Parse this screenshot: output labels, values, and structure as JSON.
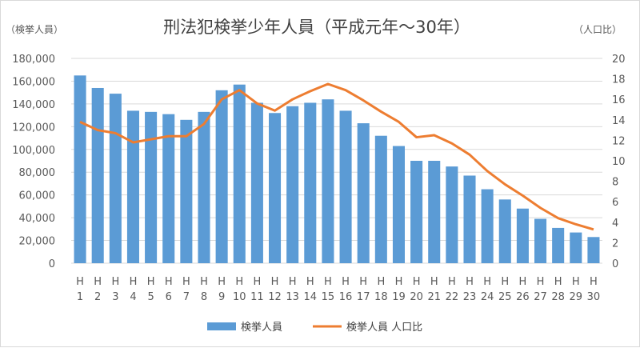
{
  "chart_data": {
    "type": "bar+line",
    "title": "刑法犯検挙少年人員（平成元年～30年）",
    "ylabel_left": "（検挙人員）",
    "ylabel_right": "（人口比）",
    "categories": [
      "1",
      "2",
      "3",
      "4",
      "5",
      "6",
      "7",
      "8",
      "9",
      "10",
      "11",
      "12",
      "13",
      "14",
      "15",
      "16",
      "17",
      "18",
      "19",
      "20",
      "21",
      "22",
      "23",
      "24",
      "25",
      "26",
      "27",
      "28",
      "29",
      "30"
    ],
    "category_prefix": "H",
    "ylim_left": [
      0,
      180000
    ],
    "ylim_right": [
      0,
      20
    ],
    "yticks_left": [
      "0",
      "20,000",
      "40,000",
      "60,000",
      "80,000",
      "100,000",
      "120,000",
      "140,000",
      "160,000",
      "180,000"
    ],
    "yticks_right": [
      "0",
      "2",
      "4",
      "6",
      "8",
      "10",
      "12",
      "14",
      "16",
      "18",
      "20"
    ],
    "grid": true,
    "legend_position": "bottom",
    "series": [
      {
        "name": "検挙人員",
        "type": "bar",
        "axis": "left",
        "color": "#5b9bd5",
        "values": [
          165000,
          154000,
          149000,
          134000,
          133000,
          131000,
          126000,
          133000,
          152000,
          157000,
          141000,
          132000,
          138000,
          141000,
          144000,
          134000,
          123000,
          112000,
          103000,
          90000,
          90000,
          85000,
          77000,
          65000,
          56000,
          48000,
          39000,
          31000,
          27000,
          23000
        ]
      },
      {
        "name": "検挙人員 人口比",
        "type": "line",
        "axis": "right",
        "color": "#ed7d31",
        "values": [
          13.8,
          13.0,
          12.7,
          11.8,
          12.1,
          12.4,
          12.4,
          13.6,
          16.0,
          16.9,
          15.6,
          14.9,
          16.0,
          16.8,
          17.5,
          16.9,
          15.9,
          14.8,
          13.8,
          12.3,
          12.5,
          11.7,
          10.6,
          9.0,
          7.7,
          6.6,
          5.4,
          4.4,
          3.8,
          3.3
        ]
      }
    ]
  }
}
